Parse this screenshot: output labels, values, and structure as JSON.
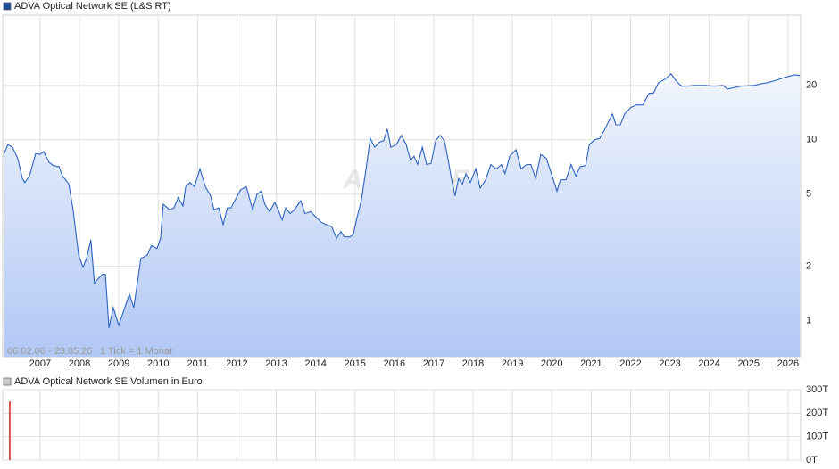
{
  "chart_data": [
    {
      "type": "line",
      "watermark": "ARIVA.DE",
      "annotations": [
        "06.02.06 - 23.05.26",
        "1 Tick = 1 Monat"
      ],
      "log_scale": true,
      "grid": true,
      "xtick_labels": true,
      "xlim": [
        2006.05,
        2026.32
      ],
      "xticks": [
        2007,
        2008,
        2009,
        2010,
        2011,
        2012,
        2013,
        2014,
        2015,
        2016,
        2017,
        2018,
        2019,
        2020,
        2021,
        2022,
        2023,
        2024,
        2025,
        2026
      ],
      "ylim": [
        0.63,
        49
      ],
      "yticks": [
        1,
        2,
        5,
        10,
        20
      ],
      "series": [
        {
          "name": "ADVA Optical Network SE (L&S RT)",
          "color": "#2d62c0",
          "legend_color": "#1f4a9a",
          "x": [
            2006.09,
            2006.18,
            2006.3,
            2006.43,
            2006.55,
            2006.61,
            2006.73,
            2006.89,
            2007.0,
            2007.09,
            2007.23,
            2007.34,
            2007.48,
            2007.57,
            2007.73,
            2007.84,
            2007.98,
            2008.09,
            2008.18,
            2008.29,
            2008.38,
            2008.47,
            2008.59,
            2008.66,
            2008.75,
            2008.86,
            2009.0,
            2009.11,
            2009.27,
            2009.38,
            2009.56,
            2009.72,
            2009.83,
            2009.97,
            2010.06,
            2010.13,
            2010.29,
            2010.4,
            2010.51,
            2010.63,
            2010.7,
            2010.81,
            2010.92,
            2011.06,
            2011.2,
            2011.33,
            2011.42,
            2011.54,
            2011.65,
            2011.76,
            2011.85,
            2011.99,
            2012.1,
            2012.24,
            2012.4,
            2012.51,
            2012.62,
            2012.71,
            2012.83,
            2012.96,
            2013.05,
            2013.15,
            2013.24,
            2013.35,
            2013.46,
            2013.62,
            2013.73,
            2013.87,
            2014.03,
            2014.14,
            2014.26,
            2014.41,
            2014.53,
            2014.64,
            2014.73,
            2014.87,
            2014.96,
            2015.05,
            2015.16,
            2015.28,
            2015.39,
            2015.5,
            2015.62,
            2015.73,
            2015.82,
            2015.91,
            2016.05,
            2016.18,
            2016.3,
            2016.41,
            2016.5,
            2016.59,
            2016.71,
            2016.82,
            2016.93,
            2017.05,
            2017.16,
            2017.27,
            2017.36,
            2017.45,
            2017.54,
            2017.63,
            2017.73,
            2017.82,
            2017.93,
            2018.07,
            2018.18,
            2018.32,
            2018.45,
            2018.59,
            2018.72,
            2018.81,
            2018.93,
            2019.09,
            2019.22,
            2019.36,
            2019.47,
            2019.59,
            2019.72,
            2019.86,
            2019.99,
            2020.13,
            2020.22,
            2020.36,
            2020.49,
            2020.61,
            2020.72,
            2020.86,
            2020.95,
            2021.09,
            2021.22,
            2021.35,
            2021.54,
            2021.63,
            2021.74,
            2021.85,
            2022.01,
            2022.15,
            2022.31,
            2022.47,
            2022.58,
            2022.71,
            2022.87,
            2023.03,
            2023.17,
            2023.3,
            2023.44,
            2023.62,
            2023.89,
            2024.12,
            2024.35,
            2024.46,
            2024.8,
            2025.14,
            2025.3,
            2025.48,
            2025.71,
            2025.93,
            2026.16,
            2026.3
          ],
          "values": [
            8.4,
            9.4,
            9.1,
            7.9,
            6.1,
            5.8,
            6.3,
            8.4,
            8.3,
            8.6,
            7.5,
            7.2,
            7.1,
            6.3,
            5.7,
            4.1,
            2.3,
            1.97,
            2.2,
            2.8,
            1.6,
            1.7,
            1.8,
            1.8,
            0.91,
            1.18,
            0.94,
            1.11,
            1.4,
            1.18,
            2.2,
            2.3,
            2.6,
            2.5,
            2.85,
            4.4,
            4.1,
            4.2,
            4.8,
            4.3,
            5.5,
            5.8,
            5.5,
            6.9,
            5.5,
            4.9,
            4.1,
            4.2,
            3.4,
            4.2,
            4.2,
            4.8,
            5.3,
            5.5,
            4.1,
            5.0,
            5.2,
            4.4,
            4.0,
            4.5,
            4.1,
            3.6,
            4.2,
            3.9,
            4.1,
            4.6,
            3.9,
            4.0,
            3.7,
            3.5,
            3.4,
            3.3,
            2.85,
            3.1,
            2.9,
            2.9,
            3.0,
            3.7,
            4.6,
            6.9,
            10.2,
            9.1,
            9.7,
            9.9,
            11.5,
            9.1,
            9.4,
            10.6,
            9.4,
            7.7,
            8.1,
            7.3,
            9.1,
            7.3,
            7.4,
            9.9,
            10.6,
            9.9,
            7.9,
            6.1,
            4.9,
            6.1,
            5.7,
            6.5,
            5.8,
            6.9,
            5.4,
            6.0,
            7.3,
            6.9,
            7.3,
            6.5,
            8.1,
            8.8,
            6.9,
            7.3,
            7.3,
            6.1,
            8.3,
            7.9,
            6.5,
            5.2,
            6.0,
            6.0,
            7.3,
            6.3,
            7.1,
            7.2,
            9.4,
            10.0,
            10.2,
            11.5,
            13.9,
            12.1,
            12.1,
            13.9,
            15.1,
            15.6,
            15.6,
            18.1,
            18.1,
            20.7,
            21.6,
            23.2,
            21,
            19.8,
            19.8,
            20,
            20,
            19.8,
            20,
            19.1,
            19.8,
            20,
            20.4,
            20.7,
            21.4,
            22.2,
            22.9,
            22.7
          ]
        }
      ]
    },
    {
      "type": "bar",
      "grid": true,
      "xtick_labels": false,
      "xlim": [
        2006.05,
        2026.32
      ],
      "xticks": [
        2007,
        2008,
        2009,
        2010,
        2011,
        2012,
        2013,
        2014,
        2015,
        2016,
        2017,
        2018,
        2019,
        2020,
        2021,
        2022,
        2023,
        2024,
        2025,
        2026
      ],
      "ylim": [
        0,
        300000
      ],
      "yticks": [
        {
          "value": 0,
          "label": "0T"
        },
        {
          "value": 100000,
          "label": "100T"
        },
        {
          "value": 200000,
          "label": "200T"
        },
        {
          "value": 300000,
          "label": "300T"
        }
      ],
      "series": [
        {
          "name": "ADVA Optical Network SE Volumen in Euro",
          "color": "#d9534f",
          "legend_color": "#cccccc",
          "x": [
            2006.23
          ],
          "values": [
            250000
          ]
        }
      ]
    }
  ]
}
